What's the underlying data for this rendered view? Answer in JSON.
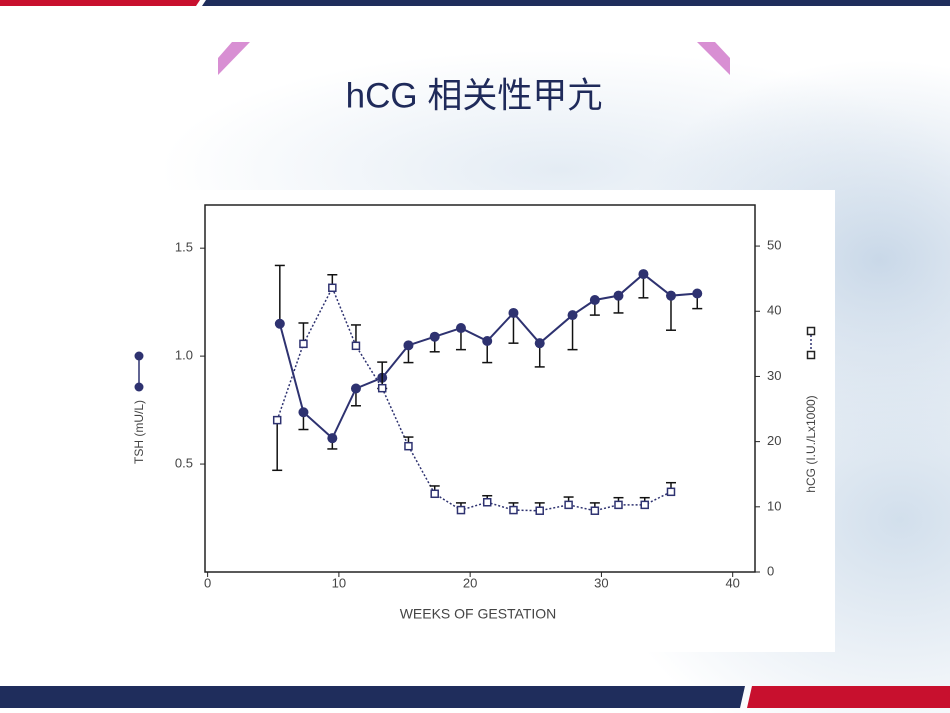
{
  "chart_data": {
    "type": "line",
    "title": "hCG 相关性甲亢",
    "x_label": "WEEKS OF GESTATION",
    "y_label": "TSH (mU/L)",
    "y2_label": "hCG (I.U./Lx1000)",
    "xlim": [
      -0.2,
      41.7
    ],
    "xticks": [
      0,
      10,
      20,
      30,
      40
    ],
    "ylim": [
      0,
      1.7
    ],
    "yticks": [
      0.5,
      {
        "value": 1,
        "label": "1.0"
      },
      1.5
    ],
    "y2lim": [
      0,
      56.3
    ],
    "y2ticks": [
      0,
      10,
      20,
      30,
      40,
      50
    ],
    "series": [
      {
        "color": "#2e3270",
        "marker": "circle",
        "line_style": "solid",
        "x": [
          5.5,
          7.3,
          9.5,
          11.3,
          13.3,
          15.3,
          17.3,
          19.3,
          21.3,
          23.3,
          25.3,
          27.8,
          29.5,
          31.3,
          33.2,
          35.3,
          37.3
        ],
        "values": [
          1.15,
          0.74,
          0.62,
          0.85,
          0.9,
          1.05,
          1.09,
          1.13,
          1.07,
          1.2,
          1.06,
          1.19,
          1.26,
          1.28,
          1.38,
          1.28,
          1.29
        ],
        "errors": [
          0.27,
          0.08,
          0.05,
          0.08,
          0.05,
          0.08,
          0.07,
          0.1,
          0.1,
          0.14,
          0.11,
          0.16,
          0.07,
          0.08,
          0.11,
          0.16,
          0.07
        ],
        "error_side": [
          "up",
          "down",
          "down",
          "down",
          "down",
          "down",
          "down",
          "down",
          "down",
          "down",
          "down",
          "down",
          "down",
          "down",
          "down",
          "down",
          "down"
        ]
      },
      {
        "color": "#2e3270",
        "marker": "square",
        "line_style": "dotted",
        "axis": "y2",
        "x": [
          5.3,
          7.3,
          9.5,
          11.3,
          13.3,
          15.3,
          17.3,
          19.3,
          21.3,
          23.3,
          25.3,
          27.5,
          29.5,
          31.3,
          33.3,
          35.3
        ],
        "values": [
          23.3,
          35.0,
          43.6,
          34.7,
          28.2,
          19.3,
          12.0,
          9.5,
          10.7,
          9.5,
          9.4,
          10.3,
          9.4,
          10.3,
          10.3,
          12.3
        ],
        "errors": [
          7.7,
          3.2,
          2.0,
          3.2,
          4.0,
          1.4,
          1.2,
          1.1,
          1.0,
          1.1,
          1.2,
          1.2,
          1.2,
          1.1,
          1.1,
          1.4
        ],
        "error_side": [
          "down",
          "up",
          "up",
          "up",
          "up",
          "up",
          "up",
          "up",
          "up",
          "up",
          "up",
          "up",
          "up",
          "up",
          "up",
          "up"
        ]
      }
    ]
  }
}
